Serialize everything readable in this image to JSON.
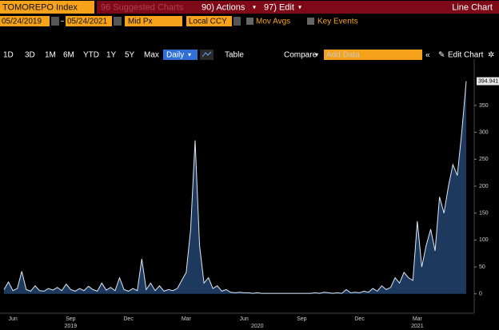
{
  "header": {
    "security": "TOMOREPO Index",
    "suggested": "96 Suggested Charts",
    "actions": "90) Actions",
    "edit": "97) Edit",
    "view": "Line Chart"
  },
  "settings": {
    "start_date": "05/24/2019",
    "end_date": "05/24/2021",
    "field": "Mid Px",
    "currency": "Local CCY",
    "mov_avgs": "Mov Avgs",
    "key_events": "Key Events"
  },
  "toolbar": {
    "periods": [
      "1D",
      "3D",
      "1M",
      "6M",
      "YTD",
      "1Y",
      "5Y",
      "Max"
    ],
    "frequency": "Daily",
    "table": "Table",
    "compare": "Compare",
    "add_data": "Add Data",
    "edit_chart": "Edit Chart"
  },
  "chart_data": {
    "type": "area",
    "color": "#dfe8f3",
    "fill": "#1d3a5e",
    "categories": [
      null,
      null,
      "Jun",
      null,
      null,
      null,
      null,
      null,
      null,
      null,
      null,
      null,
      null,
      null,
      null,
      "Sep",
      null,
      null,
      null,
      null,
      null,
      null,
      null,
      null,
      null,
      null,
      null,
      null,
      "Dec",
      null,
      null,
      null,
      null,
      null,
      null,
      null,
      null,
      null,
      null,
      null,
      null,
      "Mar",
      null,
      null,
      null,
      null,
      null,
      null,
      null,
      null,
      null,
      null,
      null,
      null,
      "Jun",
      null,
      null,
      null,
      null,
      null,
      null,
      null,
      null,
      null,
      null,
      null,
      null,
      "Sep",
      null,
      null,
      null,
      null,
      null,
      null,
      null,
      null,
      null,
      null,
      null,
      null,
      "Dec",
      null,
      null,
      null,
      null,
      null,
      null,
      null,
      null,
      null,
      null,
      null,
      null,
      "Mar",
      null,
      null,
      null,
      null,
      null,
      null,
      null,
      null,
      null,
      null,
      null
    ],
    "years": [
      null,
      null,
      null,
      null,
      null,
      null,
      null,
      null,
      null,
      null,
      null,
      null,
      null,
      null,
      null,
      "2019",
      null,
      null,
      null,
      null,
      null,
      null,
      null,
      null,
      null,
      null,
      null,
      null,
      null,
      null,
      null,
      null,
      null,
      null,
      null,
      null,
      null,
      null,
      null,
      null,
      null,
      null,
      null,
      null,
      null,
      null,
      null,
      null,
      null,
      null,
      null,
      null,
      null,
      null,
      null,
      null,
      null,
      "2020",
      null,
      null,
      null,
      null,
      null,
      null,
      null,
      null,
      null,
      null,
      null,
      null,
      null,
      null,
      null,
      null,
      null,
      null,
      null,
      null,
      null,
      null,
      null,
      null,
      null,
      null,
      null,
      null,
      null,
      null,
      null,
      null,
      null,
      null,
      null,
      "2021",
      null,
      null,
      null,
      null,
      null,
      null,
      null,
      null,
      null,
      null,
      null
    ],
    "values": [
      8,
      22,
      6,
      10,
      42,
      8,
      5,
      15,
      6,
      5,
      10,
      7,
      12,
      6,
      18,
      8,
      5,
      10,
      6,
      14,
      8,
      5,
      20,
      7,
      12,
      6,
      30,
      8,
      5,
      10,
      6,
      65,
      8,
      20,
      6,
      15,
      5,
      8,
      6,
      10,
      25,
      40,
      120,
      285,
      90,
      20,
      30,
      10,
      15,
      5,
      8,
      3,
      2,
      3,
      2,
      2,
      1,
      2,
      1,
      1,
      1,
      1,
      1,
      1,
      1,
      1,
      1,
      1,
      1,
      1,
      2,
      1,
      3,
      2,
      1,
      2,
      1,
      8,
      2,
      3,
      2,
      5,
      3,
      10,
      5,
      15,
      8,
      12,
      30,
      20,
      40,
      30,
      25,
      135,
      50,
      90,
      120,
      80,
      180,
      150,
      200,
      240,
      220,
      300,
      394.941
    ],
    "ylim": [
      -33,
      430
    ],
    "yticks": [
      0,
      50,
      100,
      150,
      200,
      250,
      300,
      350
    ]
  }
}
